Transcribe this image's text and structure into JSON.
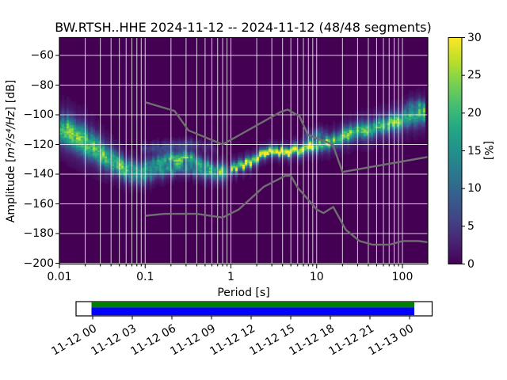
{
  "title": "BW.RTSH..HHE   2024-11-12 -- 2024-11-12  (48/48 segments)",
  "axes": {
    "xlabel": "Period [s]",
    "ylabel_prefix": "Amplitude [",
    "ylabel_math": "m²/s⁴/Hz",
    "ylabel_suffix": "] [dB]",
    "x_tick_labels": [
      "0.01",
      "0.1",
      "1",
      "10",
      "100"
    ],
    "y_tick_labels": [
      "−60",
      "−80",
      "−100",
      "−120",
      "−140",
      "−160",
      "−180",
      "−200"
    ]
  },
  "colorbar": {
    "label": "[%]",
    "tick_labels": [
      "0",
      "5",
      "10",
      "15",
      "20",
      "25",
      "30"
    ],
    "min": 0,
    "max": 30
  },
  "timeline": {
    "tick_labels": [
      "11-12 00",
      "11-12 03",
      "11-12 06",
      "11-12 09",
      "11-12 12",
      "11-12 15",
      "11-12 18",
      "11-12 21",
      "11-13 00"
    ]
  },
  "chart_data": [
    {
      "type": "heatmap",
      "name": "ppsd-probability-histogram",
      "title": "BW.RTSH..HHE   2024-11-12 -- 2024-11-12  (48/48 segments)",
      "xlabel": "Period [s]",
      "ylabel": "Amplitude [m²/s⁴/Hz] [dB]",
      "x_scale": "log",
      "xlim": [
        0.01,
        197
      ],
      "ylim": [
        -200,
        -48
      ],
      "x_major_ticks": [
        0.01,
        0.1,
        1,
        10,
        100
      ],
      "y_ticks": [
        -60,
        -80,
        -100,
        -120,
        -140,
        -160,
        -180,
        -200
      ],
      "colormap": "viridis",
      "colorbar_label": "[%]",
      "colorbar_range": [
        0,
        30
      ],
      "grid": true,
      "background_color": "#440154",
      "grid_color": "rgba(255,255,255,0.8)",
      "ridges": [
        {
          "name": "short-period-upper-mode",
          "points": [
            [
              0.01,
              -106,
              13,
              5
            ],
            [
              0.013,
              -109,
              14,
              5
            ],
            [
              0.017,
              -113,
              13,
              5
            ],
            [
              0.022,
              -117,
              12,
              5
            ],
            [
              0.03,
              -123,
              11,
              4.5
            ],
            [
              0.04,
              -128,
              11,
              4
            ],
            [
              0.055,
              -133,
              12,
              3.5
            ],
            [
              0.07,
              -135.5,
              11,
              3
            ],
            [
              0.09,
              -136.5,
              10,
              3
            ],
            [
              0.12,
              -134,
              11,
              3
            ],
            [
              0.15,
              -131,
              12,
              2.8
            ],
            [
              0.2,
              -128.7,
              14,
              2.5
            ],
            [
              0.25,
              -128.3,
              15,
              2.5
            ],
            [
              0.3,
              -128.3,
              16,
              2.5
            ],
            [
              0.4,
              -130.5,
              13,
              2.5
            ],
            [
              0.5,
              -133,
              11,
              2.5
            ],
            [
              0.65,
              -135.5,
              11,
              2.5
            ],
            [
              0.8,
              -136.5,
              13,
              2.5
            ],
            [
              1,
              -137,
              0,
              2.5
            ]
          ]
        },
        {
          "name": "short-period-lower-mode",
          "points": [
            [
              0.01,
              -113,
              10,
              4.5
            ],
            [
              0.013,
              -116,
              10,
              4.5
            ],
            [
              0.017,
              -120,
              10,
              4.5
            ],
            [
              0.022,
              -124,
              9,
              4
            ],
            [
              0.03,
              -129,
              9,
              4
            ],
            [
              0.04,
              -134,
              9,
              3.5
            ],
            [
              0.055,
              -138.5,
              10,
              3
            ],
            [
              0.07,
              -141,
              10,
              3
            ],
            [
              0.09,
              -142,
              9,
              3
            ],
            [
              0.12,
              -139.5,
              9,
              3
            ],
            [
              0.15,
              -137.5,
              10,
              2.8
            ],
            [
              0.2,
              -136.5,
              11,
              2.5
            ],
            [
              0.25,
              -136,
              11,
              2.5
            ],
            [
              0.3,
              -136.2,
              10,
              2.5
            ],
            [
              0.4,
              -137.5,
              10,
              2.5
            ],
            [
              0.5,
              -139.5,
              10,
              2.5
            ],
            [
              0.65,
              -141,
              9,
              2.5
            ],
            [
              0.8,
              -140.5,
              9,
              2.5
            ],
            [
              1,
              -138.5,
              0,
              2.5
            ]
          ]
        },
        {
          "name": "main-mode-microseism-and-long-period",
          "points": [
            [
              1,
              -137,
              20,
              2.2
            ],
            [
              1.3,
              -134,
              22,
              2
            ],
            [
              1.7,
              -131.5,
              24,
              2
            ],
            [
              2.2,
              -128,
              26,
              1.9
            ],
            [
              2.6,
              -125.6,
              29,
              1.8
            ],
            [
              3,
              -125,
              30,
              1.8
            ],
            [
              4,
              -124.5,
              30,
              1.8
            ],
            [
              5,
              -124.8,
              29,
              1.8
            ],
            [
              6,
              -123.5,
              25,
              2
            ],
            [
              8,
              -122.5,
              22,
              2.2
            ],
            [
              10,
              -121.5,
              20,
              2.4
            ],
            [
              12,
              -119.5,
              18,
              2.6
            ],
            [
              15,
              -117.5,
              17,
              2.8
            ],
            [
              20,
              -114.5,
              18,
              3
            ],
            [
              30,
              -111,
              17,
              3.2
            ],
            [
              40,
              -109.5,
              16,
              3.4
            ],
            [
              50,
              -107.5,
              17,
              3.5
            ],
            [
              70,
              -105.5,
              18,
              3.5
            ],
            [
              85,
              -104.3,
              20,
              3.5
            ],
            [
              100,
              -103.3,
              17,
              3.6
            ],
            [
              120,
              -102,
              16,
              3.8
            ],
            [
              140,
              -101,
              15,
              4
            ],
            [
              160,
              -100,
              16,
              4
            ],
            [
              190,
              -99,
              15,
              4
            ]
          ]
        },
        {
          "name": "faint-upper-band-0.1-0.7s",
          "points": [
            [
              0.09,
              -122.5,
              4,
              2
            ],
            [
              0.2,
              -120.5,
              5,
              2
            ],
            [
              0.35,
              -120,
              4,
              2
            ],
            [
              0.5,
              -121,
              3,
              2
            ],
            [
              0.7,
              -124,
              2,
              2
            ]
          ]
        },
        {
          "name": "faint-upper-fork-7-14s",
          "points": [
            [
              7,
              -115.5,
              4,
              2.5
            ],
            [
              9,
              -114,
              6,
              2.5
            ],
            [
              11,
              -113,
              7,
              2.5
            ],
            [
              14,
              -117,
              0,
              2.5
            ]
          ]
        },
        {
          "name": "faint-upper-blob-long-period",
          "points": [
            [
              100,
              -96,
              0,
              2.5
            ],
            [
              115,
              -95,
              6,
              2.5
            ],
            [
              140,
              -94,
              7,
              2.5
            ],
            [
              165,
              -93.7,
              7,
              2.5
            ],
            [
              190,
              -93.5,
              7,
              2.5
            ]
          ]
        }
      ],
      "hotspots": [
        [
          0.3,
          -128.3,
          26
        ],
        [
          2.6,
          -125.4,
          30
        ],
        [
          3.6,
          -124.7,
          30
        ],
        [
          4.6,
          -124.8,
          30
        ],
        [
          21,
          -114.3,
          24
        ],
        [
          52,
          -107.3,
          24
        ],
        [
          83,
          -104.3,
          27
        ],
        [
          150,
          -99.7,
          22
        ]
      ],
      "noise_models": {
        "color": "#6f6f6f",
        "nhnm": [
          [
            0.1,
            -91.5
          ],
          [
            0.22,
            -97.4
          ],
          [
            0.32,
            -110.5
          ],
          [
            0.8,
            -120
          ],
          [
            3.8,
            -98
          ],
          [
            4.6,
            -96.5
          ],
          [
            6.3,
            -101
          ],
          [
            7.9,
            -113.5
          ],
          [
            15.4,
            -120
          ],
          [
            20,
            -138.5
          ],
          [
            197,
            -128.4
          ]
        ],
        "nlnm": [
          [
            0.1,
            -168
          ],
          [
            0.17,
            -166.7
          ],
          [
            0.4,
            -166.7
          ],
          [
            0.8,
            -169.2
          ],
          [
            1.24,
            -163.7
          ],
          [
            2.4,
            -148.6
          ],
          [
            4.3,
            -141.1
          ],
          [
            5,
            -141.1
          ],
          [
            6,
            -149
          ],
          [
            10,
            -163.8
          ],
          [
            12,
            -166.2
          ],
          [
            15.6,
            -162.1
          ],
          [
            21.9,
            -177.5
          ],
          [
            31.6,
            -185
          ],
          [
            45,
            -187.5
          ],
          [
            70,
            -187.5
          ],
          [
            101,
            -185
          ],
          [
            154,
            -185
          ],
          [
            197,
            -185.8
          ]
        ]
      }
    },
    {
      "type": "coverage-timeline",
      "name": "data-coverage-bar",
      "x_tick_labels": [
        "11-12 00",
        "11-12 03",
        "11-12 06",
        "11-12 09",
        "11-12 12",
        "11-12 15",
        "11-12 18",
        "11-12 21",
        "11-13 00"
      ],
      "bars": [
        {
          "name": "segments-processed",
          "color": "#008000",
          "extent_ticks": [
            -0.03,
            8.12
          ]
        },
        {
          "name": "data-availability",
          "color": "#0000ff",
          "extent_ticks": [
            -0.03,
            8.12
          ]
        }
      ]
    }
  ]
}
